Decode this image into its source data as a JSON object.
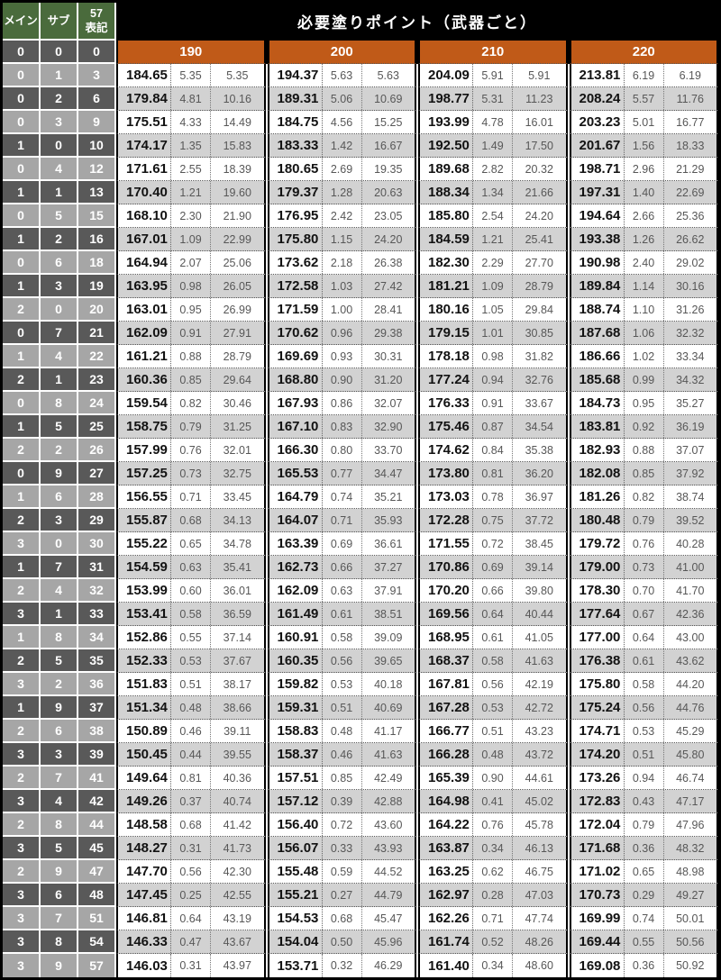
{
  "table": {
    "title": "必要塗りポイント（武器ごと）",
    "left_headers": [
      "メイン",
      "サブ",
      "57\n表記"
    ],
    "weapon_base_points": [
      "190",
      "200",
      "210",
      "220"
    ],
    "base_row": {
      "main": "0",
      "sub": "0",
      "notation": "0"
    },
    "colors": {
      "header_green": "#4a6b3c",
      "accent_orange": "#c05a18",
      "left_dark_gray": "#595959",
      "left_light_gray": "#a6a6a6",
      "data_alt_gray": "#d2d2d2",
      "header_black": "#000000"
    },
    "rows": [
      {
        "left": [
          "0",
          "1",
          "3"
        ],
        "groups": [
          [
            "184.65",
            "5.35",
            "5.35"
          ],
          [
            "194.37",
            "5.63",
            "5.63"
          ],
          [
            "204.09",
            "5.91",
            "5.91"
          ],
          [
            "213.81",
            "6.19",
            "6.19"
          ]
        ]
      },
      {
        "left": [
          "0",
          "2",
          "6"
        ],
        "groups": [
          [
            "179.84",
            "4.81",
            "10.16"
          ],
          [
            "189.31",
            "5.06",
            "10.69"
          ],
          [
            "198.77",
            "5.31",
            "11.23"
          ],
          [
            "208.24",
            "5.57",
            "11.76"
          ]
        ]
      },
      {
        "left": [
          "0",
          "3",
          "9"
        ],
        "groups": [
          [
            "175.51",
            "4.33",
            "14.49"
          ],
          [
            "184.75",
            "4.56",
            "15.25"
          ],
          [
            "193.99",
            "4.78",
            "16.01"
          ],
          [
            "203.23",
            "5.01",
            "16.77"
          ]
        ]
      },
      {
        "left": [
          "1",
          "0",
          "10"
        ],
        "groups": [
          [
            "174.17",
            "1.35",
            "15.83"
          ],
          [
            "183.33",
            "1.42",
            "16.67"
          ],
          [
            "192.50",
            "1.49",
            "17.50"
          ],
          [
            "201.67",
            "1.56",
            "18.33"
          ]
        ]
      },
      {
        "left": [
          "0",
          "4",
          "12"
        ],
        "groups": [
          [
            "171.61",
            "2.55",
            "18.39"
          ],
          [
            "180.65",
            "2.69",
            "19.35"
          ],
          [
            "189.68",
            "2.82",
            "20.32"
          ],
          [
            "198.71",
            "2.96",
            "21.29"
          ]
        ]
      },
      {
        "left": [
          "1",
          "1",
          "13"
        ],
        "groups": [
          [
            "170.40",
            "1.21",
            "19.60"
          ],
          [
            "179.37",
            "1.28",
            "20.63"
          ],
          [
            "188.34",
            "1.34",
            "21.66"
          ],
          [
            "197.31",
            "1.40",
            "22.69"
          ]
        ]
      },
      {
        "left": [
          "0",
          "5",
          "15"
        ],
        "groups": [
          [
            "168.10",
            "2.30",
            "21.90"
          ],
          [
            "176.95",
            "2.42",
            "23.05"
          ],
          [
            "185.80",
            "2.54",
            "24.20"
          ],
          [
            "194.64",
            "2.66",
            "25.36"
          ]
        ]
      },
      {
        "left": [
          "1",
          "2",
          "16"
        ],
        "groups": [
          [
            "167.01",
            "1.09",
            "22.99"
          ],
          [
            "175.80",
            "1.15",
            "24.20"
          ],
          [
            "184.59",
            "1.21",
            "25.41"
          ],
          [
            "193.38",
            "1.26",
            "26.62"
          ]
        ]
      },
      {
        "left": [
          "0",
          "6",
          "18"
        ],
        "groups": [
          [
            "164.94",
            "2.07",
            "25.06"
          ],
          [
            "173.62",
            "2.18",
            "26.38"
          ],
          [
            "182.30",
            "2.29",
            "27.70"
          ],
          [
            "190.98",
            "2.40",
            "29.02"
          ]
        ]
      },
      {
        "left": [
          "1",
          "3",
          "19"
        ],
        "groups": [
          [
            "163.95",
            "0.98",
            "26.05"
          ],
          [
            "172.58",
            "1.03",
            "27.42"
          ],
          [
            "181.21",
            "1.09",
            "28.79"
          ],
          [
            "189.84",
            "1.14",
            "30.16"
          ]
        ]
      },
      {
        "left": [
          "2",
          "0",
          "20"
        ],
        "groups": [
          [
            "163.01",
            "0.95",
            "26.99"
          ],
          [
            "171.59",
            "1.00",
            "28.41"
          ],
          [
            "180.16",
            "1.05",
            "29.84"
          ],
          [
            "188.74",
            "1.10",
            "31.26"
          ]
        ]
      },
      {
        "left": [
          "0",
          "7",
          "21"
        ],
        "groups": [
          [
            "162.09",
            "0.91",
            "27.91"
          ],
          [
            "170.62",
            "0.96",
            "29.38"
          ],
          [
            "179.15",
            "1.01",
            "30.85"
          ],
          [
            "187.68",
            "1.06",
            "32.32"
          ]
        ]
      },
      {
        "left": [
          "1",
          "4",
          "22"
        ],
        "groups": [
          [
            "161.21",
            "0.88",
            "28.79"
          ],
          [
            "169.69",
            "0.93",
            "30.31"
          ],
          [
            "178.18",
            "0.98",
            "31.82"
          ],
          [
            "186.66",
            "1.02",
            "33.34"
          ]
        ]
      },
      {
        "left": [
          "2",
          "1",
          "23"
        ],
        "groups": [
          [
            "160.36",
            "0.85",
            "29.64"
          ],
          [
            "168.80",
            "0.90",
            "31.20"
          ],
          [
            "177.24",
            "0.94",
            "32.76"
          ],
          [
            "185.68",
            "0.99",
            "34.32"
          ]
        ]
      },
      {
        "left": [
          "0",
          "8",
          "24"
        ],
        "groups": [
          [
            "159.54",
            "0.82",
            "30.46"
          ],
          [
            "167.93",
            "0.86",
            "32.07"
          ],
          [
            "176.33",
            "0.91",
            "33.67"
          ],
          [
            "184.73",
            "0.95",
            "35.27"
          ]
        ]
      },
      {
        "left": [
          "1",
          "5",
          "25"
        ],
        "groups": [
          [
            "158.75",
            "0.79",
            "31.25"
          ],
          [
            "167.10",
            "0.83",
            "32.90"
          ],
          [
            "175.46",
            "0.87",
            "34.54"
          ],
          [
            "183.81",
            "0.92",
            "36.19"
          ]
        ]
      },
      {
        "left": [
          "2",
          "2",
          "26"
        ],
        "groups": [
          [
            "157.99",
            "0.76",
            "32.01"
          ],
          [
            "166.30",
            "0.80",
            "33.70"
          ],
          [
            "174.62",
            "0.84",
            "35.38"
          ],
          [
            "182.93",
            "0.88",
            "37.07"
          ]
        ]
      },
      {
        "left": [
          "0",
          "9",
          "27"
        ],
        "groups": [
          [
            "157.25",
            "0.73",
            "32.75"
          ],
          [
            "165.53",
            "0.77",
            "34.47"
          ],
          [
            "173.80",
            "0.81",
            "36.20"
          ],
          [
            "182.08",
            "0.85",
            "37.92"
          ]
        ]
      },
      {
        "left": [
          "1",
          "6",
          "28"
        ],
        "groups": [
          [
            "156.55",
            "0.71",
            "33.45"
          ],
          [
            "164.79",
            "0.74",
            "35.21"
          ],
          [
            "173.03",
            "0.78",
            "36.97"
          ],
          [
            "181.26",
            "0.82",
            "38.74"
          ]
        ]
      },
      {
        "left": [
          "2",
          "3",
          "29"
        ],
        "groups": [
          [
            "155.87",
            "0.68",
            "34.13"
          ],
          [
            "164.07",
            "0.71",
            "35.93"
          ],
          [
            "172.28",
            "0.75",
            "37.72"
          ],
          [
            "180.48",
            "0.79",
            "39.52"
          ]
        ]
      },
      {
        "left": [
          "3",
          "0",
          "30"
        ],
        "groups": [
          [
            "155.22",
            "0.65",
            "34.78"
          ],
          [
            "163.39",
            "0.69",
            "36.61"
          ],
          [
            "171.55",
            "0.72",
            "38.45"
          ],
          [
            "179.72",
            "0.76",
            "40.28"
          ]
        ]
      },
      {
        "left": [
          "1",
          "7",
          "31"
        ],
        "groups": [
          [
            "154.59",
            "0.63",
            "35.41"
          ],
          [
            "162.73",
            "0.66",
            "37.27"
          ],
          [
            "170.86",
            "0.69",
            "39.14"
          ],
          [
            "179.00",
            "0.73",
            "41.00"
          ]
        ]
      },
      {
        "left": [
          "2",
          "4",
          "32"
        ],
        "groups": [
          [
            "153.99",
            "0.60",
            "36.01"
          ],
          [
            "162.09",
            "0.63",
            "37.91"
          ],
          [
            "170.20",
            "0.66",
            "39.80"
          ],
          [
            "178.30",
            "0.70",
            "41.70"
          ]
        ]
      },
      {
        "left": [
          "3",
          "1",
          "33"
        ],
        "groups": [
          [
            "153.41",
            "0.58",
            "36.59"
          ],
          [
            "161.49",
            "0.61",
            "38.51"
          ],
          [
            "169.56",
            "0.64",
            "40.44"
          ],
          [
            "177.64",
            "0.67",
            "42.36"
          ]
        ]
      },
      {
        "left": [
          "1",
          "8",
          "34"
        ],
        "groups": [
          [
            "152.86",
            "0.55",
            "37.14"
          ],
          [
            "160.91",
            "0.58",
            "39.09"
          ],
          [
            "168.95",
            "0.61",
            "41.05"
          ],
          [
            "177.00",
            "0.64",
            "43.00"
          ]
        ]
      },
      {
        "left": [
          "2",
          "5",
          "35"
        ],
        "groups": [
          [
            "152.33",
            "0.53",
            "37.67"
          ],
          [
            "160.35",
            "0.56",
            "39.65"
          ],
          [
            "168.37",
            "0.58",
            "41.63"
          ],
          [
            "176.38",
            "0.61",
            "43.62"
          ]
        ]
      },
      {
        "left": [
          "3",
          "2",
          "36"
        ],
        "groups": [
          [
            "151.83",
            "0.51",
            "38.17"
          ],
          [
            "159.82",
            "0.53",
            "40.18"
          ],
          [
            "167.81",
            "0.56",
            "42.19"
          ],
          [
            "175.80",
            "0.58",
            "44.20"
          ]
        ]
      },
      {
        "left": [
          "1",
          "9",
          "37"
        ],
        "groups": [
          [
            "151.34",
            "0.48",
            "38.66"
          ],
          [
            "159.31",
            "0.51",
            "40.69"
          ],
          [
            "167.28",
            "0.53",
            "42.72"
          ],
          [
            "175.24",
            "0.56",
            "44.76"
          ]
        ]
      },
      {
        "left": [
          "2",
          "6",
          "38"
        ],
        "groups": [
          [
            "150.89",
            "0.46",
            "39.11"
          ],
          [
            "158.83",
            "0.48",
            "41.17"
          ],
          [
            "166.77",
            "0.51",
            "43.23"
          ],
          [
            "174.71",
            "0.53",
            "45.29"
          ]
        ]
      },
      {
        "left": [
          "3",
          "3",
          "39"
        ],
        "groups": [
          [
            "150.45",
            "0.44",
            "39.55"
          ],
          [
            "158.37",
            "0.46",
            "41.63"
          ],
          [
            "166.28",
            "0.48",
            "43.72"
          ],
          [
            "174.20",
            "0.51",
            "45.80"
          ]
        ]
      },
      {
        "left": [
          "2",
          "7",
          "41"
        ],
        "groups": [
          [
            "149.64",
            "0.81",
            "40.36"
          ],
          [
            "157.51",
            "0.85",
            "42.49"
          ],
          [
            "165.39",
            "0.90",
            "44.61"
          ],
          [
            "173.26",
            "0.94",
            "46.74"
          ]
        ]
      },
      {
        "left": [
          "3",
          "4",
          "42"
        ],
        "groups": [
          [
            "149.26",
            "0.37",
            "40.74"
          ],
          [
            "157.12",
            "0.39",
            "42.88"
          ],
          [
            "164.98",
            "0.41",
            "45.02"
          ],
          [
            "172.83",
            "0.43",
            "47.17"
          ]
        ]
      },
      {
        "left": [
          "2",
          "8",
          "44"
        ],
        "groups": [
          [
            "148.58",
            "0.68",
            "41.42"
          ],
          [
            "156.40",
            "0.72",
            "43.60"
          ],
          [
            "164.22",
            "0.76",
            "45.78"
          ],
          [
            "172.04",
            "0.79",
            "47.96"
          ]
        ]
      },
      {
        "left": [
          "3",
          "5",
          "45"
        ],
        "groups": [
          [
            "148.27",
            "0.31",
            "41.73"
          ],
          [
            "156.07",
            "0.33",
            "43.93"
          ],
          [
            "163.87",
            "0.34",
            "46.13"
          ],
          [
            "171.68",
            "0.36",
            "48.32"
          ]
        ]
      },
      {
        "left": [
          "2",
          "9",
          "47"
        ],
        "groups": [
          [
            "147.70",
            "0.56",
            "42.30"
          ],
          [
            "155.48",
            "0.59",
            "44.52"
          ],
          [
            "163.25",
            "0.62",
            "46.75"
          ],
          [
            "171.02",
            "0.65",
            "48.98"
          ]
        ]
      },
      {
        "left": [
          "3",
          "6",
          "48"
        ],
        "groups": [
          [
            "147.45",
            "0.25",
            "42.55"
          ],
          [
            "155.21",
            "0.27",
            "44.79"
          ],
          [
            "162.97",
            "0.28",
            "47.03"
          ],
          [
            "170.73",
            "0.29",
            "49.27"
          ]
        ]
      },
      {
        "left": [
          "3",
          "7",
          "51"
        ],
        "groups": [
          [
            "146.81",
            "0.64",
            "43.19"
          ],
          [
            "154.53",
            "0.68",
            "45.47"
          ],
          [
            "162.26",
            "0.71",
            "47.74"
          ],
          [
            "169.99",
            "0.74",
            "50.01"
          ]
        ]
      },
      {
        "left": [
          "3",
          "8",
          "54"
        ],
        "groups": [
          [
            "146.33",
            "0.47",
            "43.67"
          ],
          [
            "154.04",
            "0.50",
            "45.96"
          ],
          [
            "161.74",
            "0.52",
            "48.26"
          ],
          [
            "169.44",
            "0.55",
            "50.56"
          ]
        ]
      },
      {
        "left": [
          "3",
          "9",
          "57"
        ],
        "groups": [
          [
            "146.03",
            "0.31",
            "43.97"
          ],
          [
            "153.71",
            "0.32",
            "46.29"
          ],
          [
            "161.40",
            "0.34",
            "48.60"
          ],
          [
            "169.08",
            "0.36",
            "50.92"
          ]
        ]
      }
    ]
  }
}
